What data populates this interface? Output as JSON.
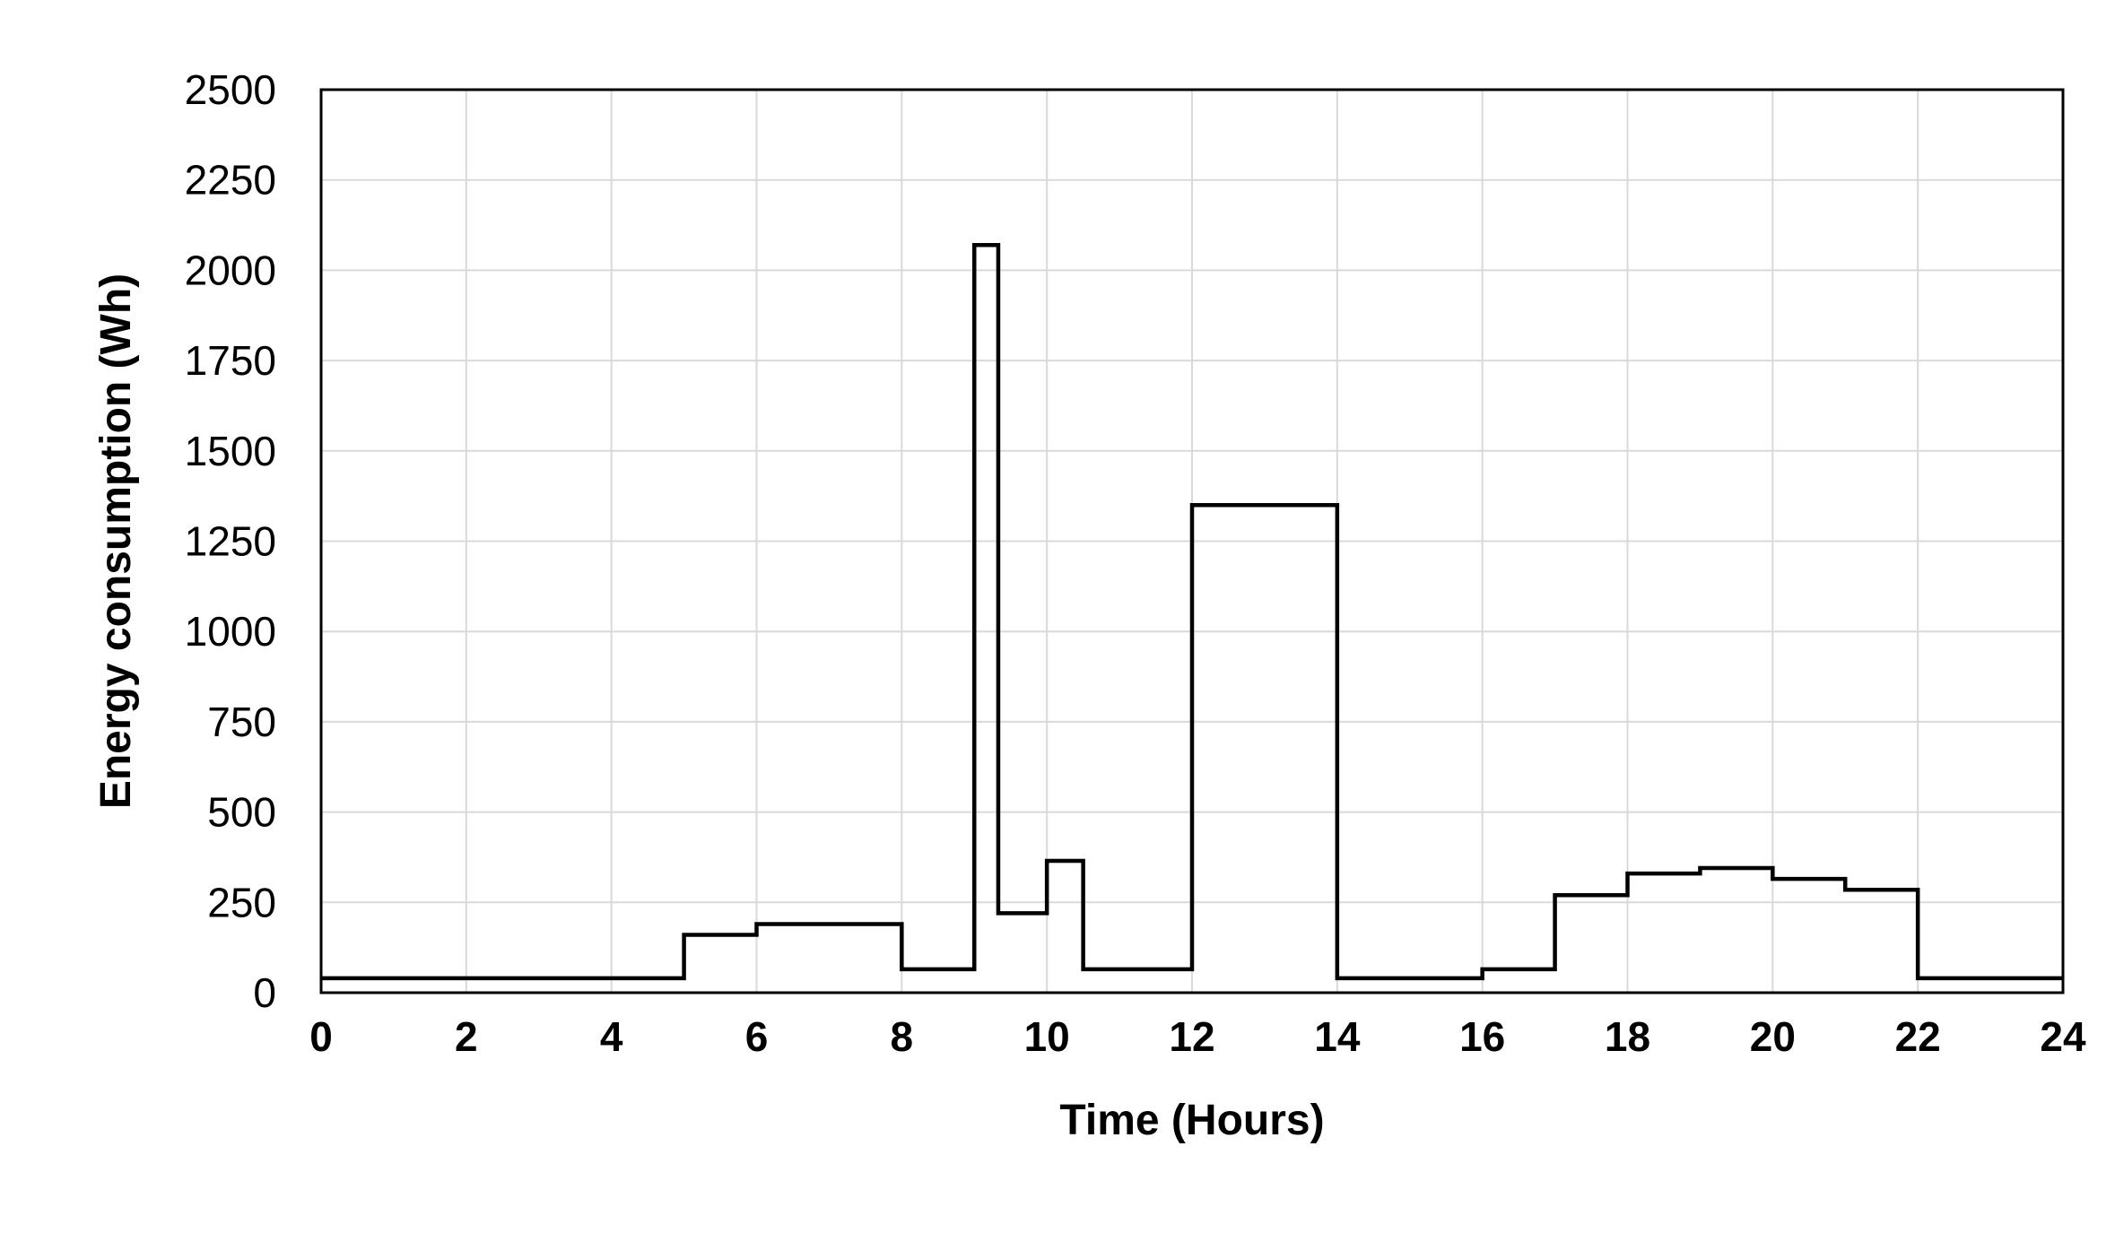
{
  "chart_data": {
    "type": "line",
    "subtype": "step",
    "title": "",
    "xlabel": "Time (Hours)",
    "ylabel": "Energy consumption (Wh)",
    "xlim": [
      0,
      24
    ],
    "ylim": [
      0,
      2500
    ],
    "x_ticks": [
      0,
      2,
      4,
      6,
      8,
      10,
      12,
      14,
      16,
      18,
      20,
      22,
      24
    ],
    "y_ticks": [
      0,
      250,
      500,
      750,
      1000,
      1250,
      1500,
      1750,
      2000,
      2250,
      2500
    ],
    "x_tick_labels": [
      "0",
      "2",
      "4",
      "6",
      "8",
      "10",
      "12",
      "14",
      "16",
      "18",
      "20",
      "22",
      "24"
    ],
    "y_tick_labels": [
      "0",
      "250",
      "500",
      "750",
      "1000",
      "1250",
      "1500",
      "1750",
      "2000",
      "2250",
      "2500"
    ],
    "grid": true,
    "legend": "none",
    "line_color": "#000000",
    "grid_color": "#d9d9d9",
    "series": [
      {
        "steps": [
          {
            "x_start": 0,
            "x_end": 5,
            "y": 40
          },
          {
            "x_start": 5,
            "x_end": 6,
            "y": 160
          },
          {
            "x_start": 6,
            "x_end": 8,
            "y": 190
          },
          {
            "x_start": 8,
            "x_end": 9,
            "y": 65
          },
          {
            "x_start": 9,
            "x_end": 9.33,
            "y": 2070
          },
          {
            "x_start": 9.33,
            "x_end": 10,
            "y": 220
          },
          {
            "x_start": 10,
            "x_end": 10.5,
            "y": 365
          },
          {
            "x_start": 10.5,
            "x_end": 12,
            "y": 65
          },
          {
            "x_start": 12,
            "x_end": 14,
            "y": 1350
          },
          {
            "x_start": 14,
            "x_end": 16,
            "y": 40
          },
          {
            "x_start": 16,
            "x_end": 17,
            "y": 65
          },
          {
            "x_start": 17,
            "x_end": 18,
            "y": 270
          },
          {
            "x_start": 18,
            "x_end": 19,
            "y": 330
          },
          {
            "x_start": 19,
            "x_end": 20,
            "y": 345
          },
          {
            "x_start": 20,
            "x_end": 21,
            "y": 315
          },
          {
            "x_start": 21,
            "x_end": 22,
            "y": 285
          },
          {
            "x_start": 22,
            "x_end": 24,
            "y": 40
          }
        ]
      }
    ]
  }
}
